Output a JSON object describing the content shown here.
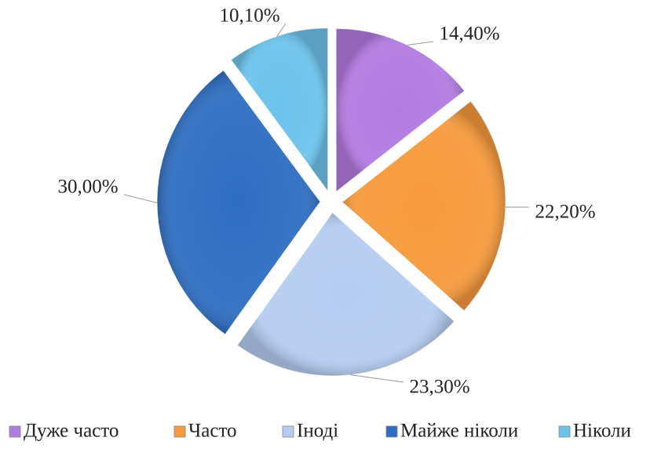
{
  "chart_data": {
    "type": "pie",
    "categories": [
      "Дуже часто",
      "Часто",
      "Іноді",
      "Майже ніколи",
      "Ніколи"
    ],
    "values": [
      14.4,
      22.2,
      23.3,
      30.0,
      10.1
    ],
    "value_labels": [
      "14,40%",
      "22,20%",
      "23,30%",
      "30,00%",
      "10,10%"
    ],
    "colors": [
      "#b27be2",
      "#f79a3c",
      "#b5cdf1",
      "#2e6ec2",
      "#6cc3ec"
    ],
    "legend": "bottom"
  }
}
